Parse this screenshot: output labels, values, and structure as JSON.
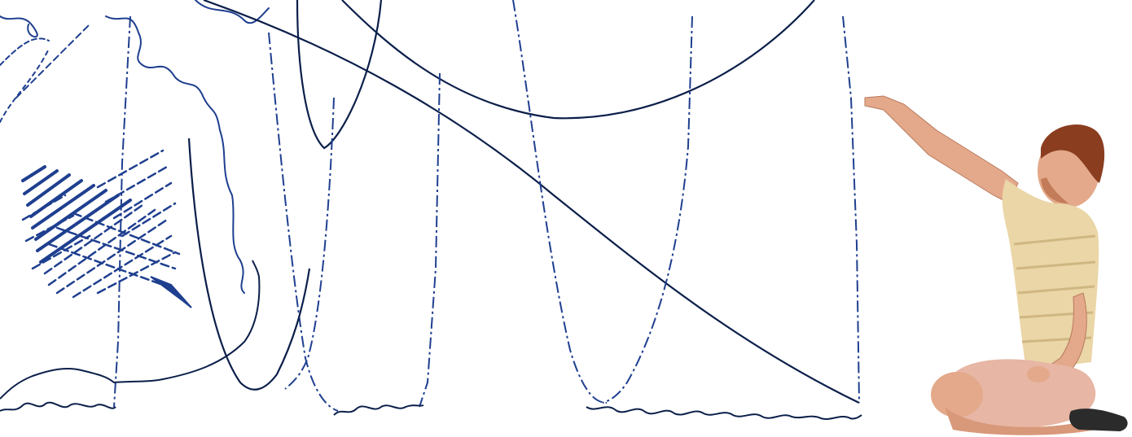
{
  "scene": {
    "description_colors": {
      "ink_dark": "#0b1f4a",
      "ink_blue": "#1f3f8f",
      "ink_faint": "#5f79b8",
      "skin": "#e3a98a",
      "skin_shadow": "#b97a5e",
      "hair": "#8a3d1f",
      "shirt": "#ead6a6",
      "shirt_stripe": "#c9b07a",
      "shorts": "#e7b6a4",
      "shoe": "#2b2b2b",
      "background": "#ffffff"
    },
    "icons": [
      "hand-drawn-trace-curves",
      "hatched-scribble",
      "pointing-person"
    ]
  }
}
